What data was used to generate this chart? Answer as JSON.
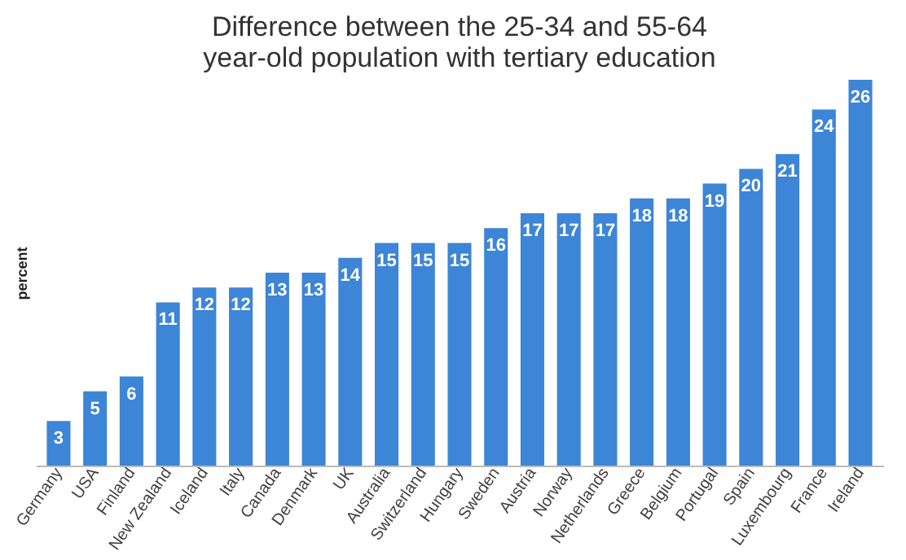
{
  "chart_data": {
    "type": "bar",
    "title": "Difference between the 25-34 and 55-64 year-old population with tertiary education",
    "ylabel": "percent",
    "categories": [
      "Germany",
      "USA",
      "Finland",
      "New Zealand",
      "Iceland",
      "Italy",
      "Canada",
      "Denmark",
      "UK",
      "Australia",
      "Switzerland",
      "Hungary",
      "Sweden",
      "Austria",
      "Norway",
      "Netherlands",
      "Greece",
      "Belgium",
      "Portugal",
      "Spain",
      "Luxembourg",
      "France",
      "Ireland"
    ],
    "values": [
      3,
      5,
      6,
      11,
      12,
      12,
      13,
      13,
      14,
      15,
      15,
      15,
      16,
      17,
      17,
      17,
      18,
      18,
      19,
      20,
      21,
      24,
      26
    ],
    "color": "#3d85d6",
    "data_labels": true,
    "grid": false
  }
}
